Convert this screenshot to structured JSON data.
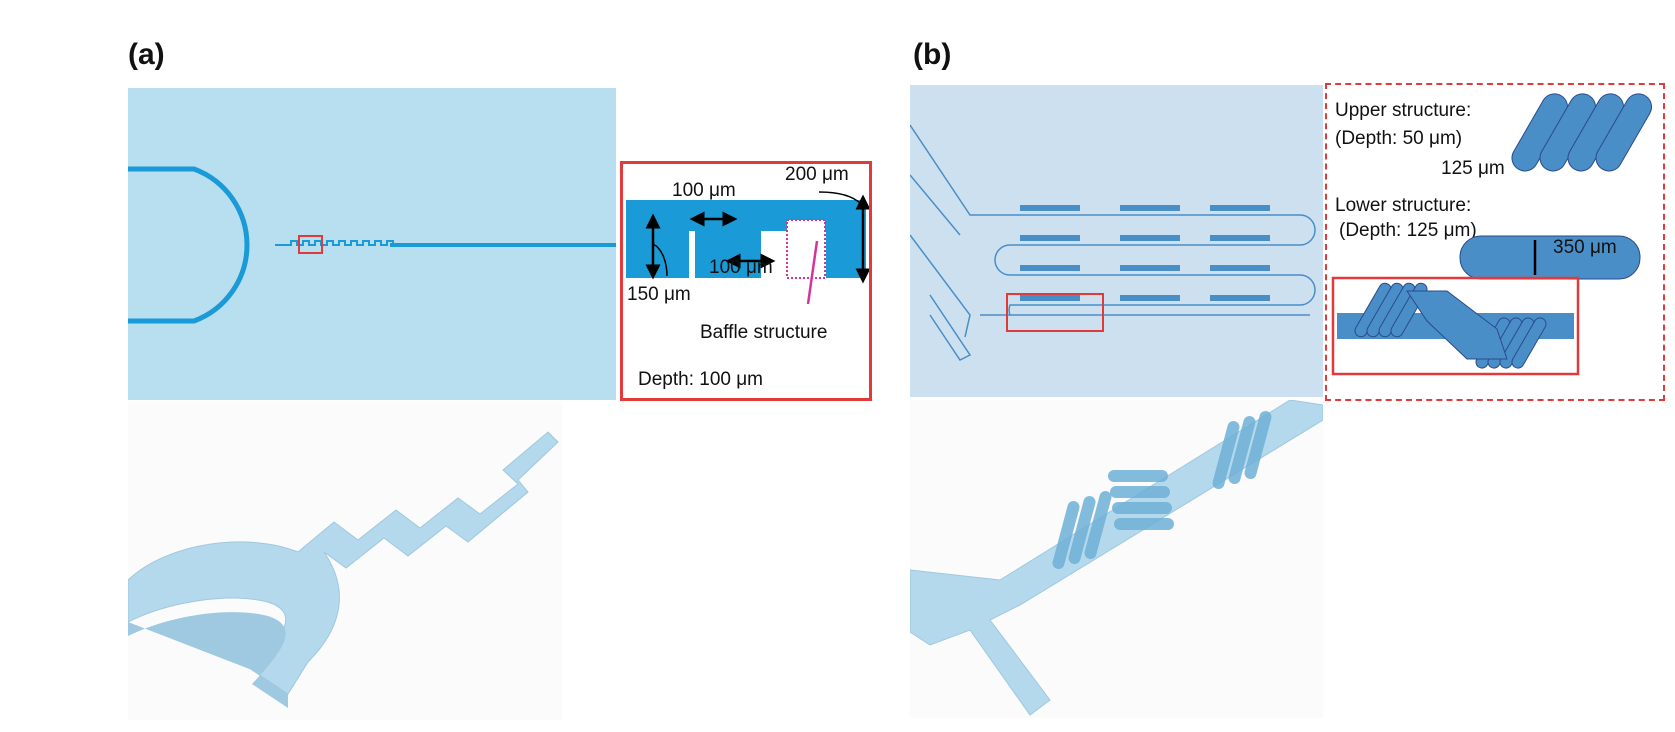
{
  "panel_a": {
    "label": "(a)",
    "zoom": {
      "dim_width_top": "100 μm",
      "dim_width_bottom": "100 μm",
      "dim_height_channel": "150 μm",
      "dim_height_total": "200 μm",
      "baffle_label": "Baffle structure",
      "depth_label": "Depth: 100 μm"
    }
  },
  "panel_b": {
    "label": "(b)",
    "zoom": {
      "upper_title": "Upper structure:",
      "upper_depth": "(Depth: 50 μm)",
      "upper_dim": "125 μm",
      "lower_title": "Lower structure:",
      "lower_depth": "(Depth: 125 μm)",
      "lower_dim": "350 μm"
    }
  },
  "colors": {
    "chip_bg_a": "#b8dff0",
    "chip_bg_b": "#cde0ef",
    "channel": "#1a9ad6",
    "channel_b": "#4a8ec8",
    "highlight_box": "#e03a3a",
    "baffle_marker": "#d6339a",
    "model_3d": "#b5d9ec"
  }
}
